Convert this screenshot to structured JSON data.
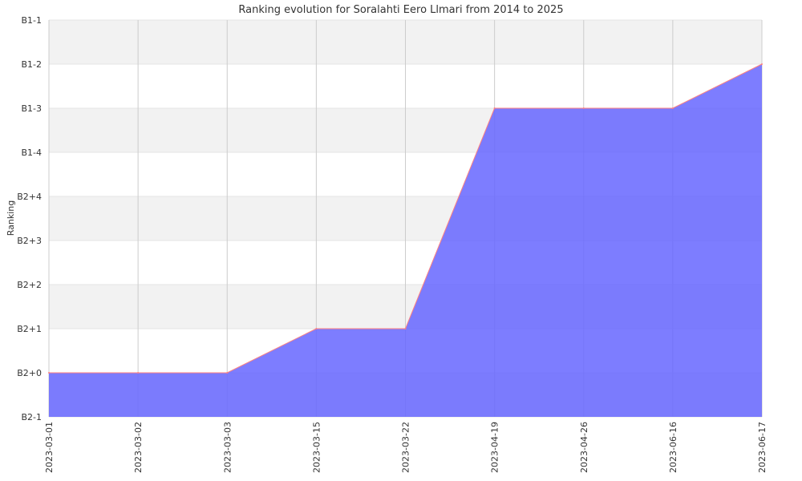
{
  "chart_data": {
    "type": "area",
    "title": "Ranking evolution for Soralahti Eero Llmari from 2014 to 2025",
    "xlabel": "",
    "ylabel": "Ranking",
    "y_categories": [
      "B2-1",
      "B2+0",
      "B2+1",
      "B2+2",
      "B2+3",
      "B2+4",
      "B1-4",
      "B1-3",
      "B1-2",
      "B1-1"
    ],
    "x": [
      "2023-03-01",
      "2023-03-02",
      "2023-03-03",
      "2023-03-15",
      "2023-03-22",
      "2023-04-19",
      "2023-04-26",
      "2023-06-16",
      "2023-06-17"
    ],
    "series": [
      {
        "values": [
          "B2+0",
          "B2+0",
          "B2+0",
          "B2+1",
          "B2+1",
          "B1-3",
          "B1-3",
          "B1-3",
          "B1-2"
        ]
      }
    ],
    "grid": true,
    "colors": {
      "fill": "#6666ff",
      "line": "#ff7f7f",
      "band": "#f2f2f2",
      "grid": "#cccccc"
    }
  }
}
